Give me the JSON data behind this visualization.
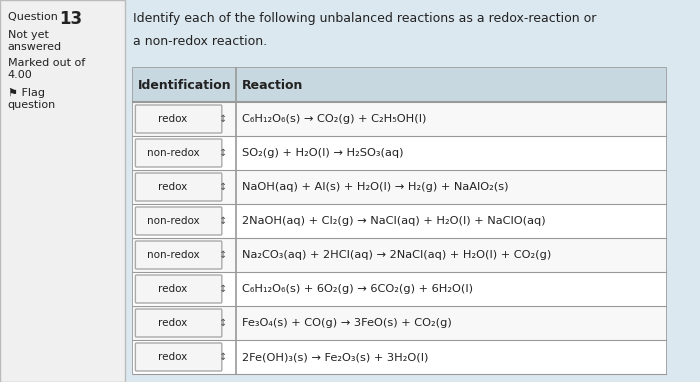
{
  "title": "Question 13",
  "sidebar_lines": [
    "Question 13",
    "Not yet",
    "answered",
    "Marked out of",
    "4.00",
    "⚑ Flag",
    "question"
  ],
  "instruction": "Identify each of the following unbalanced reactions as a redox-reaction or\na non-redox reaction.",
  "col1_header": "Identification",
  "col2_header": "Reaction",
  "rows": [
    {
      "id": "redox",
      "reaction": "C₆H₁₂O₆(s) → CO₂(g) + C₂H₅OH(l)"
    },
    {
      "id": "non-redox",
      "reaction": "SO₂(g) + H₂O(l) → H₂SO₃(aq)"
    },
    {
      "id": "redox",
      "reaction": "NaOH(aq) + Al(s) + H₂O(l) → H₂(g) + NaAlO₂(s)"
    },
    {
      "id": "non-redox",
      "reaction": "2NaOH(aq) + Cl₂(g) → NaCl(aq) + H₂O(l) + NaClO(aq)"
    },
    {
      "id": "non-redox",
      "reaction": "Na₂CO₃(aq) + 2HCl(aq) → 2NaCl(aq) + H₂O(l) + CO₂(g)"
    },
    {
      "id": "redox",
      "reaction": "C₆H₁₂O₆(s) + 6O₂(g) → 6CO₂(g) + 6H₂O(l)"
    },
    {
      "id": "redox",
      "reaction": "Fe₃O₄(s) + CO(g) → 3FeO(s) + CO₂(g)"
    },
    {
      "id": "redox",
      "reaction": "2Fe(OH)₃(s) → Fe₂O₃(s) + 3H₂O(l)"
    }
  ],
  "bg_color": "#dce8f0",
  "sidebar_bg": "#f0f0f0",
  "table_bg": "#ffffff",
  "header_bg": "#c8d8e0",
  "row_bg_odd": "#f8f8f8",
  "row_bg_even": "#ffffff",
  "cell_id_bg": "#e8e8e8",
  "border_color": "#999999",
  "text_color": "#222222",
  "sidebar_border": "#bbbbbb"
}
